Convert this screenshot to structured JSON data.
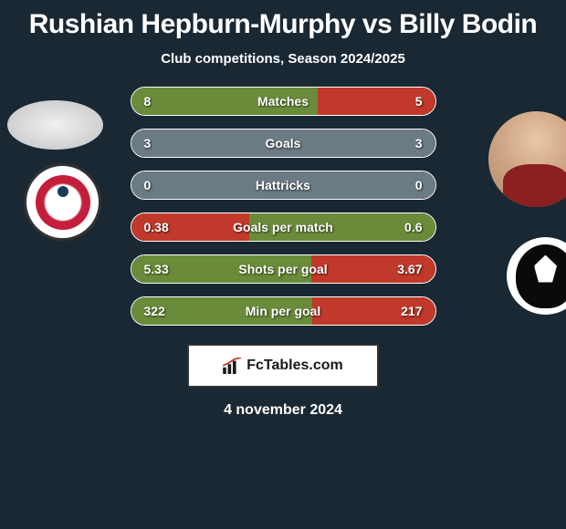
{
  "title": "Rushian Hepburn-Murphy vs Billy Bodin",
  "subtitle": "Club competitions, Season 2024/2025",
  "date": "4 november 2024",
  "source": "FcTables.com",
  "colors": {
    "background": "#1a2833",
    "text": "#ffffff",
    "red_fill": "#c0392b",
    "green_fill": "#6a8c3a",
    "gray_fill": "#6b7b84"
  },
  "stats": [
    {
      "label": "Matches",
      "left_value": "8",
      "right_value": "5",
      "left_pct": 61.5,
      "right_pct": 38.5,
      "left_color": "#6a8c3a",
      "right_color": "#c0392b"
    },
    {
      "label": "Goals",
      "left_value": "3",
      "right_value": "3",
      "left_pct": 50,
      "right_pct": 50,
      "left_color": "#6b7b84",
      "right_color": "#6b7b84"
    },
    {
      "label": "Hattricks",
      "left_value": "0",
      "right_value": "0",
      "left_pct": 50,
      "right_pct": 50,
      "left_color": "#6b7b84",
      "right_color": "#6b7b84"
    },
    {
      "label": "Goals per match",
      "left_value": "0.38",
      "right_value": "0.6",
      "left_pct": 38.8,
      "right_pct": 61.2,
      "left_color": "#c0392b",
      "right_color": "#6a8c3a"
    },
    {
      "label": "Shots per goal",
      "left_value": "5.33",
      "right_value": "3.67",
      "left_pct": 59.2,
      "right_pct": 40.8,
      "left_color": "#6a8c3a",
      "right_color": "#c0392b"
    },
    {
      "label": "Min per goal",
      "left_value": "322",
      "right_value": "217",
      "left_pct": 59.7,
      "right_pct": 40.3,
      "left_color": "#6a8c3a",
      "right_color": "#c0392b"
    }
  ]
}
